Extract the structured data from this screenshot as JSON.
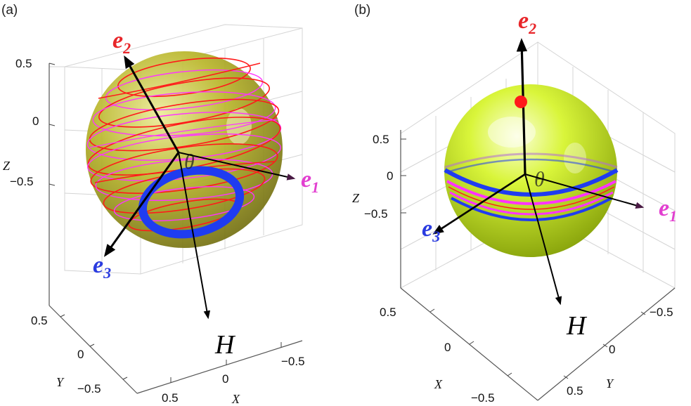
{
  "panels": [
    {
      "tag": "(a)",
      "z_ticks": [
        "0.5",
        "0",
        "−0.5"
      ],
      "y_ticks": [
        "0.5",
        "0",
        "−0.5"
      ],
      "x_ticks": [
        "0.5",
        "0",
        "−0.5"
      ],
      "z_label": "Z",
      "y_label": "Y",
      "x_label": "X",
      "vectors": {
        "e1": {
          "base": "e",
          "sub": "1",
          "color": "#e23fd0"
        },
        "e2": {
          "base": "e",
          "sub": "2",
          "color": "#e8262a"
        },
        "e3": {
          "base": "e",
          "sub": "3",
          "color": "#2a3be0"
        },
        "H": {
          "text": "H"
        }
      },
      "theta": "θ"
    },
    {
      "tag": "(b)",
      "z_ticks": [
        "0.5",
        "0",
        "−0.5"
      ],
      "x_ticks": [
        "0.5",
        "0",
        "−0.5"
      ],
      "y_ticks": [
        "−0.5",
        "0",
        "0.5"
      ],
      "z_label": "Z",
      "x_label": "X",
      "y_label": "Y",
      "vectors": {
        "e1": {
          "base": "e",
          "sub": "1",
          "color": "#e23fd0"
        },
        "e2": {
          "base": "e",
          "sub": "2",
          "color": "#e8262a"
        },
        "e3": {
          "base": "e",
          "sub": "3",
          "color": "#2a3be0"
        },
        "H": {
          "text": "H"
        }
      },
      "theta": "θ"
    }
  ],
  "colors": {
    "sphere_a": "#b5b420",
    "sphere_b": "#c9ec1c",
    "trajectory_red": "#ff1a1a",
    "trajectory_magenta": "#ff33ff",
    "band_blue": "#1f3cf0",
    "arrow": "#000000"
  }
}
